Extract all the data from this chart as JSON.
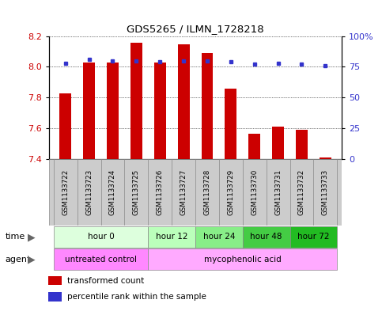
{
  "title": "GDS5265 / ILMN_1728218",
  "samples": [
    "GSM1133722",
    "GSM1133723",
    "GSM1133724",
    "GSM1133725",
    "GSM1133726",
    "GSM1133727",
    "GSM1133728",
    "GSM1133729",
    "GSM1133730",
    "GSM1133731",
    "GSM1133732",
    "GSM1133733"
  ],
  "bar_values": [
    7.826,
    8.028,
    8.027,
    8.155,
    8.027,
    8.147,
    8.09,
    7.856,
    7.564,
    7.612,
    7.59,
    7.41
  ],
  "bar_bottom": 7.4,
  "dot_values": [
    78,
    81,
    80,
    80,
    79,
    80,
    80,
    79,
    77,
    78,
    77,
    76
  ],
  "ylim_left": [
    7.4,
    8.2
  ],
  "ylim_right": [
    0,
    100
  ],
  "yticks_left": [
    7.4,
    7.6,
    7.8,
    8.0,
    8.2
  ],
  "yticks_right": [
    0,
    25,
    50,
    75,
    100
  ],
  "bar_color": "#cc0000",
  "dot_color": "#3333cc",
  "grid_color": "#000000",
  "time_groups": [
    {
      "label": "hour 0",
      "start": 0,
      "end": 4,
      "color": "#ddffdd"
    },
    {
      "label": "hour 12",
      "start": 4,
      "end": 6,
      "color": "#bbffbb"
    },
    {
      "label": "hour 24",
      "start": 6,
      "end": 8,
      "color": "#88ee88"
    },
    {
      "label": "hour 48",
      "start": 8,
      "end": 10,
      "color": "#44cc44"
    },
    {
      "label": "hour 72",
      "start": 10,
      "end": 12,
      "color": "#22bb22"
    }
  ],
  "legend_bar_label": "transformed count",
  "legend_dot_label": "percentile rank within the sample",
  "left_axis_color": "#cc0000",
  "right_axis_color": "#3333cc",
  "bg_color": "#ffffff",
  "sample_box_color": "#cccccc",
  "bar_width": 0.5,
  "untreated_color": "#ff88ff",
  "myco_color": "#ffaaff"
}
